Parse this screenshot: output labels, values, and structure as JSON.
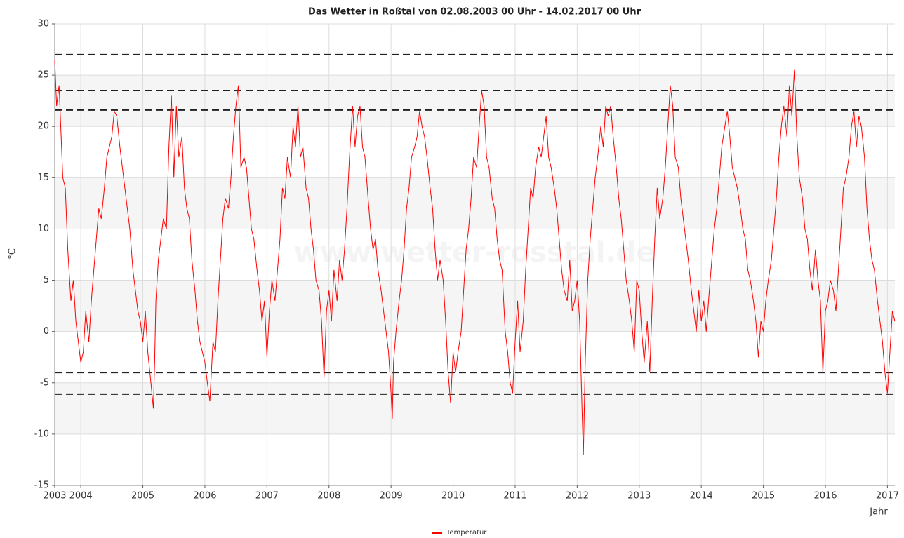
{
  "chart_data": {
    "type": "line",
    "title": "Das Wetter in Roßtal von 02.08.2003 00 Uhr - 14.02.2017 00 Uhr",
    "watermark": "www.wetter-rosstal.de",
    "xlabel": "Jahr",
    "ylabel": "°C",
    "x": [
      2003.58,
      2003.61,
      2003.65,
      2003.71,
      2003.75,
      2003.79,
      2003.84,
      2003.88,
      2003.92,
      2003.96,
      2004.0,
      2004.04,
      2004.08,
      2004.13,
      2004.17,
      2004.21,
      2004.25,
      2004.29,
      2004.33,
      2004.38,
      2004.42,
      2004.46,
      2004.5,
      2004.54,
      2004.58,
      2004.63,
      2004.67,
      2004.71,
      2004.75,
      2004.79,
      2004.84,
      2004.88,
      2004.92,
      2004.96,
      2005.0,
      2005.04,
      2005.08,
      2005.13,
      2005.17,
      2005.19,
      2005.21,
      2005.25,
      2005.29,
      2005.33,
      2005.38,
      2005.42,
      2005.46,
      2005.5,
      2005.54,
      2005.58,
      2005.63,
      2005.67,
      2005.71,
      2005.75,
      2005.79,
      2005.84,
      2005.88,
      2005.92,
      2005.96,
      2006.0,
      2006.04,
      2006.08,
      2006.13,
      2006.17,
      2006.21,
      2006.25,
      2006.29,
      2006.33,
      2006.38,
      2006.42,
      2006.46,
      2006.5,
      2006.54,
      2006.58,
      2006.63,
      2006.67,
      2006.71,
      2006.75,
      2006.79,
      2006.84,
      2006.88,
      2006.92,
      2006.96,
      2007.0,
      2007.04,
      2007.08,
      2007.13,
      2007.17,
      2007.21,
      2007.25,
      2007.29,
      2007.33,
      2007.38,
      2007.42,
      2007.46,
      2007.5,
      2007.54,
      2007.58,
      2007.63,
      2007.67,
      2007.71,
      2007.75,
      2007.79,
      2007.84,
      2007.88,
      2007.92,
      2007.96,
      2008.0,
      2008.04,
      2008.08,
      2008.13,
      2008.17,
      2008.21,
      2008.25,
      2008.29,
      2008.33,
      2008.38,
      2008.42,
      2008.46,
      2008.5,
      2008.54,
      2008.58,
      2008.63,
      2008.67,
      2008.71,
      2008.75,
      2008.79,
      2008.84,
      2008.88,
      2008.92,
      2008.96,
      2009.0,
      2009.02,
      2009.04,
      2009.08,
      2009.13,
      2009.17,
      2009.21,
      2009.25,
      2009.29,
      2009.33,
      2009.38,
      2009.42,
      2009.46,
      2009.5,
      2009.54,
      2009.58,
      2009.63,
      2009.67,
      2009.71,
      2009.75,
      2009.79,
      2009.84,
      2009.88,
      2009.92,
      2009.96,
      2010.0,
      2010.04,
      2010.08,
      2010.13,
      2010.17,
      2010.21,
      2010.25,
      2010.29,
      2010.33,
      2010.38,
      2010.42,
      2010.46,
      2010.5,
      2010.54,
      2010.58,
      2010.63,
      2010.67,
      2010.71,
      2010.75,
      2010.79,
      2010.84,
      2010.88,
      2010.92,
      2010.96,
      2011.0,
      2011.04,
      2011.08,
      2011.13,
      2011.17,
      2011.21,
      2011.25,
      2011.29,
      2011.33,
      2011.38,
      2011.42,
      2011.46,
      2011.5,
      2011.54,
      2011.58,
      2011.63,
      2011.67,
      2011.71,
      2011.75,
      2011.79,
      2011.84,
      2011.88,
      2011.92,
      2011.96,
      2012.0,
      2012.04,
      2012.08,
      2012.1,
      2012.13,
      2012.17,
      2012.21,
      2012.25,
      2012.29,
      2012.33,
      2012.38,
      2012.42,
      2012.46,
      2012.5,
      2012.54,
      2012.58,
      2012.63,
      2012.67,
      2012.71,
      2012.75,
      2012.79,
      2012.84,
      2012.88,
      2012.92,
      2012.96,
      2013.0,
      2013.04,
      2013.08,
      2013.13,
      2013.17,
      2013.21,
      2013.25,
      2013.29,
      2013.33,
      2013.38,
      2013.42,
      2013.46,
      2013.5,
      2013.54,
      2013.58,
      2013.63,
      2013.67,
      2013.71,
      2013.75,
      2013.79,
      2013.84,
      2013.88,
      2013.92,
      2013.96,
      2014.0,
      2014.04,
      2014.08,
      2014.13,
      2014.17,
      2014.21,
      2014.25,
      2014.29,
      2014.33,
      2014.38,
      2014.42,
      2014.46,
      2014.5,
      2014.54,
      2014.58,
      2014.63,
      2014.67,
      2014.71,
      2014.75,
      2014.79,
      2014.84,
      2014.88,
      2014.92,
      2014.96,
      2015.0,
      2015.04,
      2015.08,
      2015.13,
      2015.17,
      2015.21,
      2015.25,
      2015.29,
      2015.33,
      2015.38,
      2015.42,
      2015.46,
      2015.5,
      2015.54,
      2015.58,
      2015.63,
      2015.67,
      2015.71,
      2015.75,
      2015.79,
      2015.84,
      2015.88,
      2015.92,
      2015.96,
      2016.0,
      2016.04,
      2016.08,
      2016.13,
      2016.17,
      2016.21,
      2016.25,
      2016.29,
      2016.33,
      2016.38,
      2016.42,
      2016.46,
      2016.5,
      2016.54,
      2016.58,
      2016.63,
      2016.67,
      2016.71,
      2016.75,
      2016.79,
      2016.84,
      2016.88,
      2016.92,
      2016.96,
      2017.0,
      2017.04,
      2017.08,
      2017.12
    ],
    "series": [
      {
        "name": "Temperatur",
        "color": "#ff0000",
        "values": [
          26.5,
          22,
          24,
          15,
          14,
          8,
          3,
          5,
          1,
          -1,
          -3,
          -2,
          2,
          -1,
          3,
          6,
          9,
          12,
          11,
          14,
          17,
          18,
          19,
          21.5,
          21,
          18,
          16,
          14,
          12,
          10,
          6,
          4,
          2,
          1,
          -1,
          2,
          -2,
          -5,
          -7.5,
          -3,
          3,
          7,
          9,
          11,
          10,
          18,
          23,
          15,
          22,
          17,
          19,
          14,
          12,
          11,
          7,
          4,
          1,
          -1,
          -2,
          -3,
          -5,
          -6.8,
          -1,
          -2,
          3,
          7,
          11,
          13,
          12,
          15,
          19,
          22,
          24,
          16,
          17,
          16,
          13,
          10,
          9,
          6,
          4,
          1,
          3,
          -2.5,
          2,
          5,
          3,
          6,
          9,
          14,
          13,
          17,
          15,
          20,
          18,
          22,
          17,
          18,
          14,
          13,
          10,
          8,
          5,
          4,
          1,
          -4.5,
          2,
          4,
          1,
          6,
          3,
          7,
          5,
          8,
          12,
          17,
          22,
          18,
          21,
          22,
          18,
          17,
          13,
          10,
          8,
          9,
          6,
          4,
          2,
          0,
          -2,
          -6,
          -8.5,
          -3,
          0,
          3,
          5,
          8,
          12,
          14,
          17,
          18,
          19,
          21.5,
          20,
          19,
          17,
          14,
          12,
          8,
          5,
          7,
          5,
          1,
          -4,
          -7,
          -2,
          -4,
          -2,
          0,
          4,
          8,
          10,
          13,
          17,
          16,
          20,
          23.5,
          22,
          17,
          16,
          13,
          12,
          9,
          7,
          6,
          0,
          -2,
          -5,
          -6,
          -1,
          3,
          -2,
          1,
          6,
          10,
          14,
          13,
          16,
          18,
          17,
          19,
          21,
          17,
          16,
          14,
          12,
          9,
          6,
          4,
          3,
          7,
          2,
          3,
          5,
          1,
          -8,
          -12,
          -3,
          5,
          9,
          12,
          15,
          17,
          20,
          18,
          22,
          21,
          22,
          19,
          16,
          13,
          11,
          8,
          5,
          3,
          1,
          -2,
          5,
          4,
          0,
          -3,
          1,
          -4,
          3,
          9,
          14,
          11,
          13,
          16,
          20,
          24,
          22,
          17,
          16,
          13,
          11,
          9,
          7,
          4,
          2,
          0,
          4,
          1,
          3,
          0,
          4,
          7,
          10,
          12,
          15,
          18,
          20,
          21.5,
          19,
          16,
          15,
          14,
          12,
          10,
          9,
          6,
          5,
          3,
          1,
          -2.5,
          1,
          0,
          3,
          5,
          7,
          10,
          13,
          17,
          20,
          22,
          19,
          24,
          21,
          25.5,
          19,
          15,
          13,
          10,
          9,
          6,
          4,
          8,
          5,
          3,
          -4,
          2,
          3,
          5,
          4,
          2,
          6,
          10,
          14,
          15,
          17,
          20,
          21.5,
          18,
          21,
          20,
          17,
          12,
          9,
          7,
          6,
          3,
          1,
          -1,
          -4,
          -6,
          -2,
          2,
          1
        ]
      }
    ],
    "xlim": [
      2003.58,
      2017.12
    ],
    "xticks": [
      {
        "value": 2003.58,
        "label": "2003"
      },
      2004,
      2005,
      2006,
      2007,
      2008,
      2009,
      2010,
      2011,
      2012,
      2013,
      2014,
      2015,
      2016,
      2017
    ],
    "ylim": [
      -15,
      30
    ],
    "yticks": [
      -15,
      -10,
      -5,
      0,
      5,
      10,
      15,
      20,
      25,
      30
    ],
    "grid": true,
    "reference_lines": [
      27,
      23.5,
      21.6,
      -4,
      -6.1
    ],
    "legend": "bottom"
  }
}
